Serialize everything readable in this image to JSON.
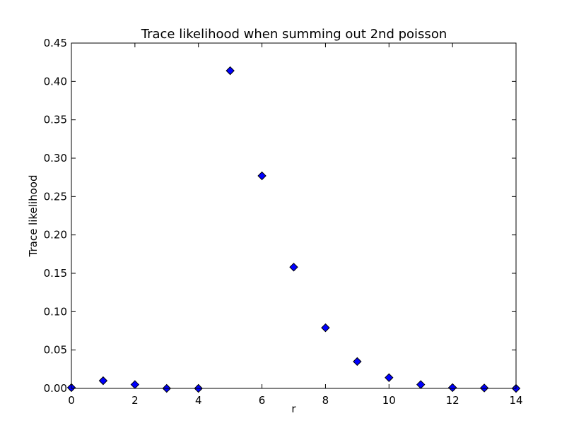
{
  "chart_data": {
    "type": "scatter",
    "title": "Trace likelihood when summing out 2nd poisson",
    "xlabel": "r",
    "ylabel": "Trace likelihood",
    "xlim": [
      0,
      14
    ],
    "ylim": [
      0,
      0.45
    ],
    "xticks": [
      0,
      2,
      4,
      6,
      8,
      10,
      12,
      14
    ],
    "xtick_labels": [
      "0",
      "2",
      "4",
      "6",
      "8",
      "10",
      "12",
      "14"
    ],
    "yticks": [
      0,
      0.05,
      0.1,
      0.15,
      0.2,
      0.25,
      0.3,
      0.35,
      0.4,
      0.45
    ],
    "ytick_labels": [
      "0.00",
      "0.05",
      "0.10",
      "0.15",
      "0.20",
      "0.25",
      "0.30",
      "0.35",
      "0.40",
      "0.45"
    ],
    "grid": false,
    "legend": "none",
    "marker": "diamond",
    "marker_color": "#0000ff",
    "marker_edge_color": "#000000",
    "x": [
      0,
      1,
      2,
      3,
      4,
      5,
      6,
      7,
      8,
      9,
      10,
      11,
      12,
      13,
      14
    ],
    "y": [
      0.001,
      0.01,
      0.005,
      0.0,
      0.0,
      0.414,
      0.277,
      0.158,
      0.079,
      0.035,
      0.014,
      0.005,
      0.001,
      0.0005,
      0.0
    ]
  }
}
